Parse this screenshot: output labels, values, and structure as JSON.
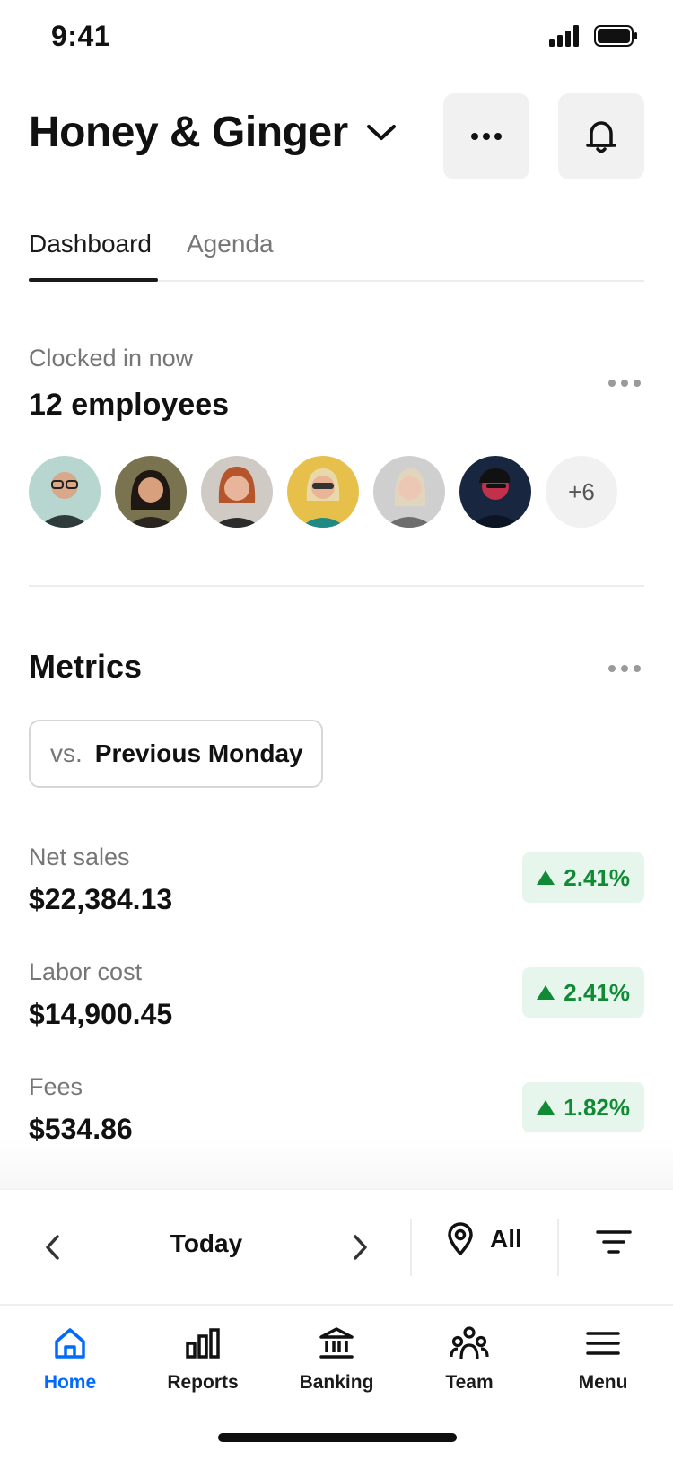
{
  "status_bar": {
    "time": "9:41"
  },
  "header": {
    "store_name": "Honey & Ginger"
  },
  "tabs": [
    {
      "label": "Dashboard",
      "active": true
    },
    {
      "label": "Agenda",
      "active": false
    }
  ],
  "clocked_in": {
    "label": "Clocked in now",
    "count_text": "12 employees",
    "overflow_label": "+6"
  },
  "metrics": {
    "title": "Metrics",
    "comparison_prefix": "vs.",
    "comparison_value": "Previous Monday",
    "items": [
      {
        "label": "Net sales",
        "value": "$22,384.13",
        "delta": "2.41%"
      },
      {
        "label": "Labor cost",
        "value": "$14,900.45",
        "delta": "2.41%"
      },
      {
        "label": "Fees",
        "value": "$534.86",
        "delta": "1.82%"
      }
    ]
  },
  "date_controls": {
    "date_label": "Today",
    "location_label": "All"
  },
  "bottom_nav": [
    {
      "label": "Home",
      "icon": "home-icon",
      "active": true
    },
    {
      "label": "Reports",
      "icon": "bar-chart-icon",
      "active": false
    },
    {
      "label": "Banking",
      "icon": "bank-icon",
      "active": false
    },
    {
      "label": "Team",
      "icon": "team-icon",
      "active": false
    },
    {
      "label": "Menu",
      "icon": "hamburger-icon",
      "active": false
    }
  ],
  "colors": {
    "accent": "#006aff",
    "positive": "#118a35",
    "positive_bg": "#e6f6ec"
  }
}
